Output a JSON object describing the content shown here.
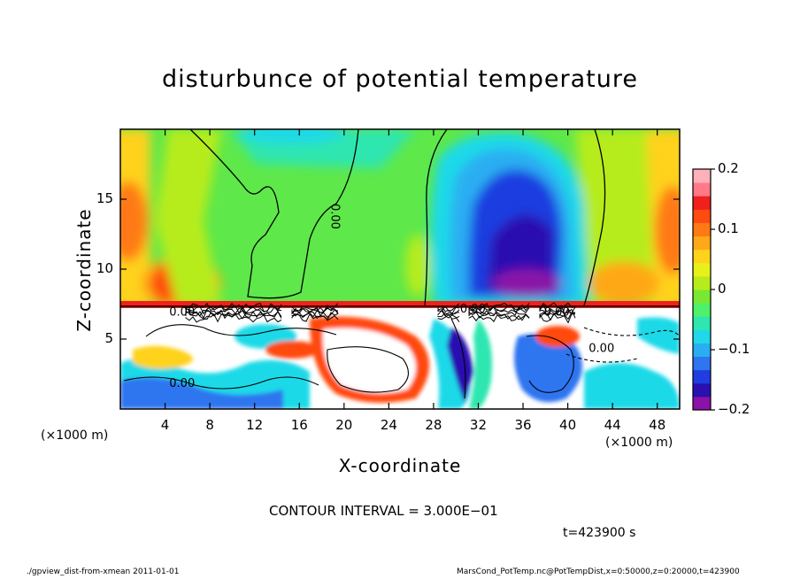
{
  "chart_data": {
    "type": "heatmap",
    "title": "disturbunce of potential temperature",
    "xlabel": "X-coordinate",
    "ylabel": "Z-coordinate",
    "x_unit": "(×1000 m)",
    "x_unit_secondary": "(×1000 m)",
    "xlim": [
      0,
      50
    ],
    "ylim": [
      0,
      20
    ],
    "x_ticks": [
      4,
      8,
      12,
      16,
      20,
      24,
      28,
      32,
      36,
      40,
      44,
      48
    ],
    "y_ticks": [
      5,
      10,
      15
    ],
    "colorbar": {
      "vmin": -0.2,
      "vmax": 0.2,
      "ticks": [
        0.2,
        0.1,
        0,
        -0.1,
        -0.2
      ],
      "tick_labels": [
        "0.2",
        "0.1",
        "0",
        "−0.1",
        "−0.2"
      ],
      "colors": [
        "#8a12a8",
        "#2a10b0",
        "#1f3de0",
        "#2f74f0",
        "#29aef2",
        "#1fd9e8",
        "#2ee6b0",
        "#4ff06a",
        "#78e832",
        "#b6ec1c",
        "#e8f01a",
        "#ffd21c",
        "#ffa818",
        "#ff7a14",
        "#ff4a10",
        "#f0201c",
        "#ff7a86",
        "#ffb0b8"
      ]
    },
    "contour_labels": [
      "0.00",
      "0.00",
      "0.00",
      "0.00",
      "0.00",
      "0.00",
      "0.00"
    ],
    "contour_interval": "CONTOUR INTERVAL = 3.000E−01",
    "time_label": "t=423900 s"
  },
  "footer": {
    "left": "./gpview_dist-from-xmean   2011-01-01",
    "right": "MarsCond_PotTemp.nc@PotTempDist,x=0:50000,z=0:20000,t=423900"
  }
}
